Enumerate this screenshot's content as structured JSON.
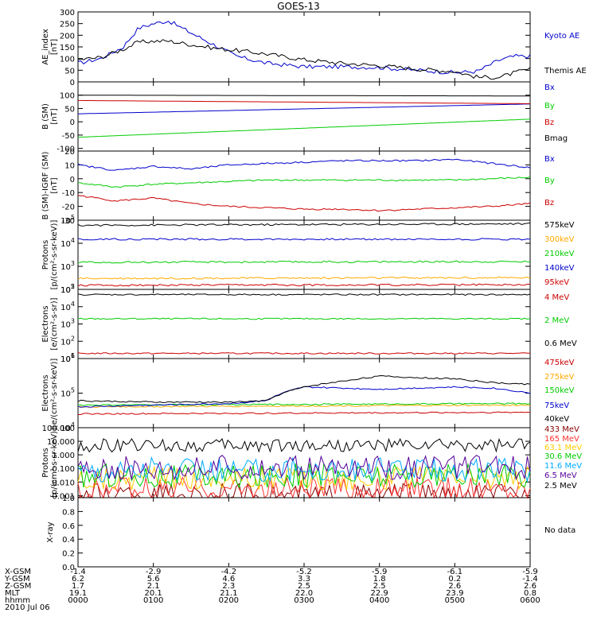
{
  "title": "GOES-13",
  "footer": {
    "row_labels": [
      "X-GSM",
      "Y-GSM",
      "Z-GSM",
      "MLT",
      "hhmm"
    ],
    "date": "2010 Jul 06",
    "columns": [
      [
        "-1.4",
        "6.2",
        "1.7",
        "19.1",
        "0000"
      ],
      [
        "-2.9",
        "5.6",
        "2.1",
        "20.1",
        "0100"
      ],
      [
        "-4.2",
        "4.6",
        "2.3",
        "21.1",
        "0200"
      ],
      [
        "-5.2",
        "3.3",
        "2.5",
        "22.0",
        "0300"
      ],
      [
        "-5.9",
        "1.8",
        "2.5",
        "22.9",
        "0400"
      ],
      [
        "-6.1",
        "0.2",
        "2.6",
        "23.9",
        "0500"
      ],
      [
        "-5.9",
        "-1.4",
        "2.6",
        "0.8",
        "0600"
      ]
    ]
  },
  "chart_data": [
    {
      "type": "line",
      "ylabel": [
        "AE_index",
        "[nT]"
      ],
      "ylim": [
        0,
        300
      ],
      "y_ticks": [
        "300",
        "250",
        "200",
        "150",
        "100",
        "50",
        "0"
      ],
      "x_hours": [
        0,
        1,
        2,
        3,
        4,
        5,
        6
      ],
      "series": [
        {
          "name": "Kyoto AE",
          "color": "#0000cc",
          "x": [
            0,
            0.3,
            0.6,
            0.8,
            1.0,
            1.2,
            1.5,
            1.8,
            2.1,
            2.5,
            3.0,
            3.5,
            4.0,
            4.5,
            5.0,
            5.3,
            5.6,
            5.8,
            6.0
          ],
          "y": [
            80,
            100,
            150,
            230,
            250,
            262,
            210,
            160,
            110,
            80,
            65,
            65,
            62,
            50,
            40,
            45,
            95,
            110,
            110
          ]
        },
        {
          "name": "Themis AE",
          "color": "#000000",
          "x": [
            0,
            0.3,
            0.6,
            0.8,
            1.0,
            1.2,
            1.5,
            1.8,
            2.1,
            2.5,
            3.0,
            3.5,
            4.0,
            4.5,
            5.0,
            5.3,
            5.6,
            5.8,
            6.0
          ],
          "y": [
            95,
            105,
            140,
            170,
            175,
            175,
            160,
            145,
            135,
            120,
            95,
            80,
            70,
            55,
            45,
            20,
            20,
            40,
            55
          ]
        }
      ]
    },
    {
      "type": "line",
      "ylabel": [
        "B (SM)",
        "[nT]"
      ],
      "ylim": [
        -110,
        150
      ],
      "y_ticks": [
        "100",
        "50",
        "0",
        "-50",
        "-100"
      ],
      "y_tick_values": [
        100,
        50,
        0,
        -50,
        -100
      ],
      "series": [
        {
          "name": "Bx",
          "color": "#0000cc",
          "x": [
            0,
            6
          ],
          "y": [
            30,
            67
          ]
        },
        {
          "name": "By",
          "color": "#00cc00",
          "x": [
            0,
            6
          ],
          "y": [
            -58,
            10
          ]
        },
        {
          "name": "Bz",
          "color": "#cc0000",
          "x": [
            0,
            6
          ],
          "y": [
            80,
            68
          ]
        },
        {
          "name": "Bmag",
          "color": "#000000",
          "x": [
            0,
            6
          ],
          "y": [
            100,
            97
          ]
        }
      ]
    },
    {
      "type": "line",
      "ylabel": [
        "B (SM)-IGRF (SM)",
        "[nT]"
      ],
      "ylim": [
        -30,
        20
      ],
      "y_ticks": [
        "20",
        "10",
        "0",
        "-10",
        "-20",
        "-30"
      ],
      "series": [
        {
          "name": "Bx",
          "color": "#0000cc",
          "x": [
            0,
            0.5,
            1.0,
            1.5,
            2.0,
            2.5,
            3.0,
            3.5,
            4.0,
            4.5,
            5.0,
            5.5,
            6.0
          ],
          "y": [
            10,
            6,
            9,
            7,
            10,
            11,
            12,
            13,
            13,
            13,
            14,
            11,
            8
          ]
        },
        {
          "name": "By",
          "color": "#00cc00",
          "x": [
            0,
            0.5,
            1.0,
            1.5,
            2.0,
            2.5,
            3.0,
            3.5,
            4.0,
            4.5,
            5.0,
            5.5,
            6.0
          ],
          "y": [
            -3,
            -6,
            -4,
            -3,
            -2,
            -1,
            -1,
            -1,
            -1,
            -1,
            -1,
            0,
            1
          ]
        },
        {
          "name": "Bz",
          "color": "#cc0000",
          "x": [
            0,
            0.5,
            1.0,
            1.5,
            2.0,
            2.5,
            3.0,
            3.5,
            4.0,
            4.5,
            5.0,
            5.5,
            6.0
          ],
          "y": [
            -12,
            -16,
            -14,
            -18,
            -20,
            -21,
            -22,
            -22,
            -23,
            -22,
            -21,
            -20,
            -18
          ]
        }
      ]
    },
    {
      "type": "line",
      "log": true,
      "ylabel": [
        "Protons",
        "[p/(cm²-s-sr-keV)]"
      ],
      "ylim": [
        100,
        100000
      ],
      "y_tick_exps": [
        2,
        3,
        4,
        5
      ],
      "series": [
        {
          "name": "575keV",
          "color": "#000000",
          "x": [
            0,
            6
          ],
          "y": [
            60000,
            70000
          ]
        },
        {
          "name": "300keV",
          "color": "#ffaa00",
          "x": [
            0,
            6
          ],
          "y": [
            300,
            320
          ]
        },
        {
          "name": "210keV",
          "color": "#00cc00",
          "x": [
            0,
            6
          ],
          "y": [
            1500,
            1600
          ]
        },
        {
          "name": "140keV",
          "color": "#0000cc",
          "x": [
            0,
            6
          ],
          "y": [
            15000,
            15000
          ]
        },
        {
          "name": "95keV",
          "color": "#cc0000",
          "x": [
            0,
            6
          ],
          "y": [
            150,
            160
          ]
        }
      ]
    },
    {
      "type": "line",
      "log": true,
      "ylabel": [
        "Electrons",
        "[e/(cm²-s-sr)]"
      ],
      "ylim": [
        10,
        100000
      ],
      "y_tick_exps": [
        1,
        2,
        3,
        4,
        5
      ],
      "series": [
        {
          "name": "4 MeV",
          "color": "#cc0000",
          "x": [
            0,
            6
          ],
          "y": [
            20,
            20
          ]
        },
        {
          "name": "2 MeV",
          "color": "#00cc00",
          "x": [
            0,
            6
          ],
          "y": [
            2000,
            2000
          ]
        },
        {
          "name": "0.6 MeV",
          "color": "#000000",
          "x": [
            0,
            6
          ],
          "y": [
            50000,
            50000
          ]
        }
      ]
    },
    {
      "type": "line",
      "log": true,
      "ylabel": [
        "Electrons",
        "[e/(cm²-s-sr-keV)]"
      ],
      "ylim": [
        10000,
        1000000
      ],
      "y_tick_exps": [
        4,
        5,
        6
      ],
      "series": [
        {
          "name": "475keV",
          "color": "#cc0000",
          "x": [
            0,
            6
          ],
          "y": [
            25000,
            28000
          ]
        },
        {
          "name": "275keV",
          "color": "#ffaa00",
          "x": [
            0,
            6
          ],
          "y": [
            40000,
            45000
          ]
        },
        {
          "name": "150keV",
          "color": "#00cc00",
          "x": [
            0,
            6
          ],
          "y": [
            45000,
            50000
          ]
        },
        {
          "name": "75keV",
          "color": "#0000cc",
          "x": [
            0,
            1,
            2,
            2.5,
            3.0,
            3.5,
            4.0,
            4.5,
            5.0,
            5.5,
            6.0
          ],
          "y": [
            40000,
            45000,
            50000,
            60000,
            150000,
            140000,
            130000,
            140000,
            150000,
            140000,
            100000
          ]
        },
        {
          "name": "40keV",
          "color": "#000000",
          "x": [
            0,
            1,
            2,
            2.5,
            3.0,
            3.5,
            4.0,
            4.5,
            5.0,
            5.5,
            6.0
          ],
          "y": [
            60000,
            55000,
            55000,
            60000,
            150000,
            220000,
            310000,
            280000,
            260000,
            200000,
            180000
          ]
        }
      ]
    },
    {
      "type": "line",
      "log": true,
      "ylabel": [
        "Protons",
        "[p/(cm²-s-sr-keV)]"
      ],
      "ylim": [
        0.0007,
        100
      ],
      "y_ticks": [
        "100.000",
        "10.000",
        "1.000",
        "0.100",
        "0.010",
        "0.001"
      ],
      "y_tick_values": [
        100,
        10,
        1,
        0.1,
        0.01,
        0.001
      ],
      "series": [
        {
          "name": "433 MeV",
          "color": "#880000",
          "x": [
            0,
            6
          ],
          "y": [
            0.001,
            0.001
          ]
        },
        {
          "name": "165 MeV",
          "color": "#ff3333",
          "x": [
            0,
            6
          ],
          "y": [
            0.003,
            0.003
          ]
        },
        {
          "name": "63.1 MeV",
          "color": "#ffcc00",
          "x": [
            0,
            6
          ],
          "y": [
            0.02,
            0.02
          ]
        },
        {
          "name": "30.6 MeV",
          "color": "#00cc00",
          "x": [
            0,
            6
          ],
          "y": [
            0.03,
            0.03
          ]
        },
        {
          "name": "11.6 MeV",
          "color": "#00aaff",
          "x": [
            0,
            6
          ],
          "y": [
            0.08,
            0.08
          ]
        },
        {
          "name": "6.5 MeV",
          "color": "#550099",
          "x": [
            0,
            6
          ],
          "y": [
            0.12,
            0.12
          ]
        },
        {
          "name": "2.5 MeV",
          "color": "#000000",
          "x": [
            0,
            6
          ],
          "y": [
            5,
            5
          ]
        }
      ]
    },
    {
      "type": "line",
      "ylabel": [
        "X-ray"
      ],
      "ylim": [
        0,
        1
      ],
      "y_ticks": [
        "1.0",
        "0.8",
        "0.6",
        "0.4",
        "0.2",
        "0.0"
      ],
      "series": [],
      "note": "No data"
    }
  ]
}
